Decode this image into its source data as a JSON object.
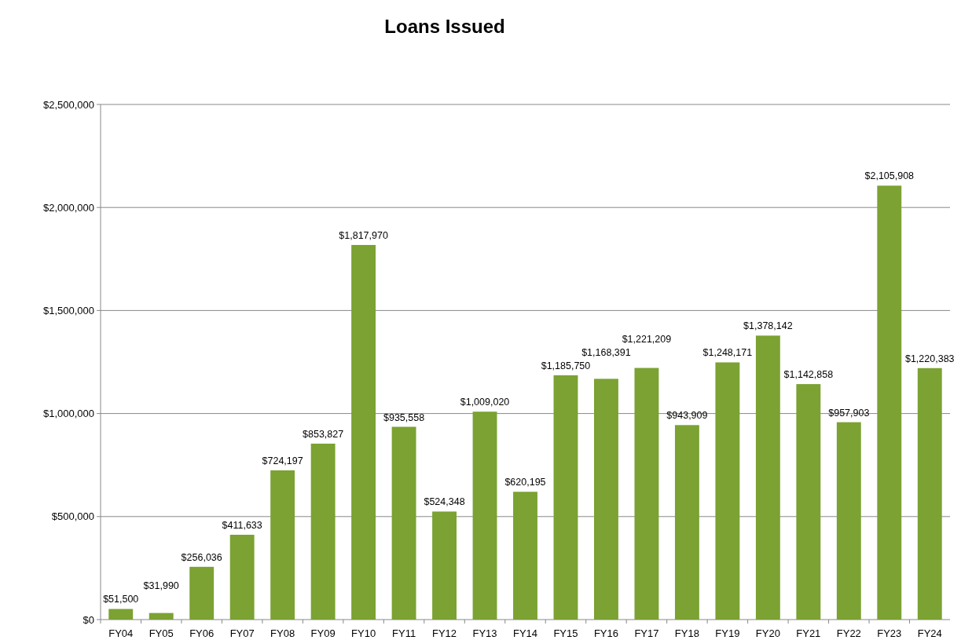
{
  "chart_data": {
    "type": "bar",
    "title": "Loans Issued",
    "categories": [
      "FY04",
      "FY05",
      "FY06",
      "FY07",
      "FY08",
      "FY09",
      "FY10",
      "FY11",
      "FY12",
      "FY13",
      "FY14",
      "FY15",
      "FY16",
      "FY17",
      "FY18",
      "FY19",
      "FY20",
      "FY21",
      "FY22",
      "FY23",
      "FY24"
    ],
    "values": [
      51500,
      31990,
      256036,
      411633,
      724197,
      853827,
      1817970,
      935558,
      524348,
      1009020,
      620195,
      1185750,
      1168391,
      1221209,
      943909,
      1248171,
      1378142,
      1142858,
      957903,
      2105908,
      1220383
    ],
    "value_labels": [
      "$51,500",
      "$31,990",
      "$256,036",
      "$411,633",
      "$724,197",
      "$853,827",
      "$1,817,970",
      "$935,558",
      "$524,348",
      "$1,009,020",
      "$620,195",
      "$1,185,750",
      "$1,168,391",
      "$1,221,209",
      "$943,909",
      "$1,248,171",
      "$1,378,142",
      "$1,142,858",
      "$957,903",
      "$2,105,908",
      "$1,220,383"
    ],
    "color": "#7ba232",
    "ylim": [
      0,
      2500000
    ],
    "yticks": [
      {
        "value": 0,
        "label": "$0"
      },
      {
        "value": 500000,
        "label": "$500,000"
      },
      {
        "value": 1000000,
        "label": "$1,000,000"
      },
      {
        "value": 1500000,
        "label": "$1,500,000"
      },
      {
        "value": 2000000,
        "label": "$2,000,000"
      },
      {
        "value": 2500000,
        "label": "$2,500,000"
      }
    ],
    "grid": "y"
  }
}
